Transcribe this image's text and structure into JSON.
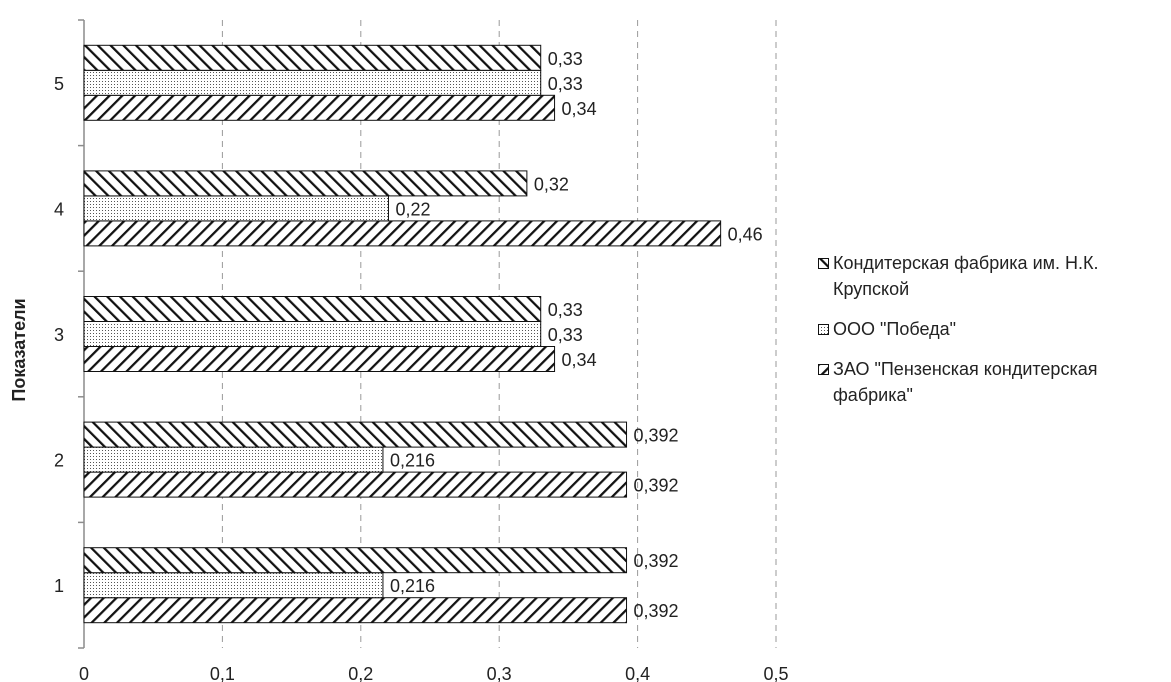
{
  "chart_data": {
    "type": "bar",
    "orientation": "horizontal",
    "categories": [
      "1",
      "2",
      "3",
      "4",
      "5"
    ],
    "series": [
      {
        "name": "ЗАО \"Пензенская кондитерская фабрика\"",
        "pattern": "hatch-backslash",
        "values": [
          0.392,
          0.392,
          0.34,
          0.46,
          0.34
        ],
        "labels": [
          "0,392",
          "0,392",
          "0,34",
          "0,46",
          "0,34"
        ]
      },
      {
        "name": "ООО \"Победа\"",
        "pattern": "dots",
        "values": [
          0.216,
          0.216,
          0.33,
          0.22,
          0.33
        ],
        "labels": [
          "0,216",
          "0,216",
          "0,33",
          "0,22",
          "0,33"
        ]
      },
      {
        "name": "Кондитерская фабрика им. Н.К. Крупской",
        "pattern": "hatch-slash",
        "values": [
          0.392,
          0.392,
          0.33,
          0.32,
          0.33
        ],
        "labels": [
          "0,392",
          "0,392",
          "0,33",
          "0,32",
          "0,33"
        ]
      }
    ],
    "xlim": [
      0,
      0.5
    ],
    "xticks": [
      "0",
      "0,1",
      "0,2",
      "0,3",
      "0,4",
      "0,5"
    ],
    "ylabel": "Показатели",
    "xlabel": "",
    "title": "",
    "grid": "vertical-dashed",
    "legend_position": "right",
    "legend_order": [
      2,
      1,
      0
    ]
  },
  "colors": {
    "stroke": "#111111",
    "grid": "#9a9a9a",
    "axis": "#8c8c8c"
  }
}
